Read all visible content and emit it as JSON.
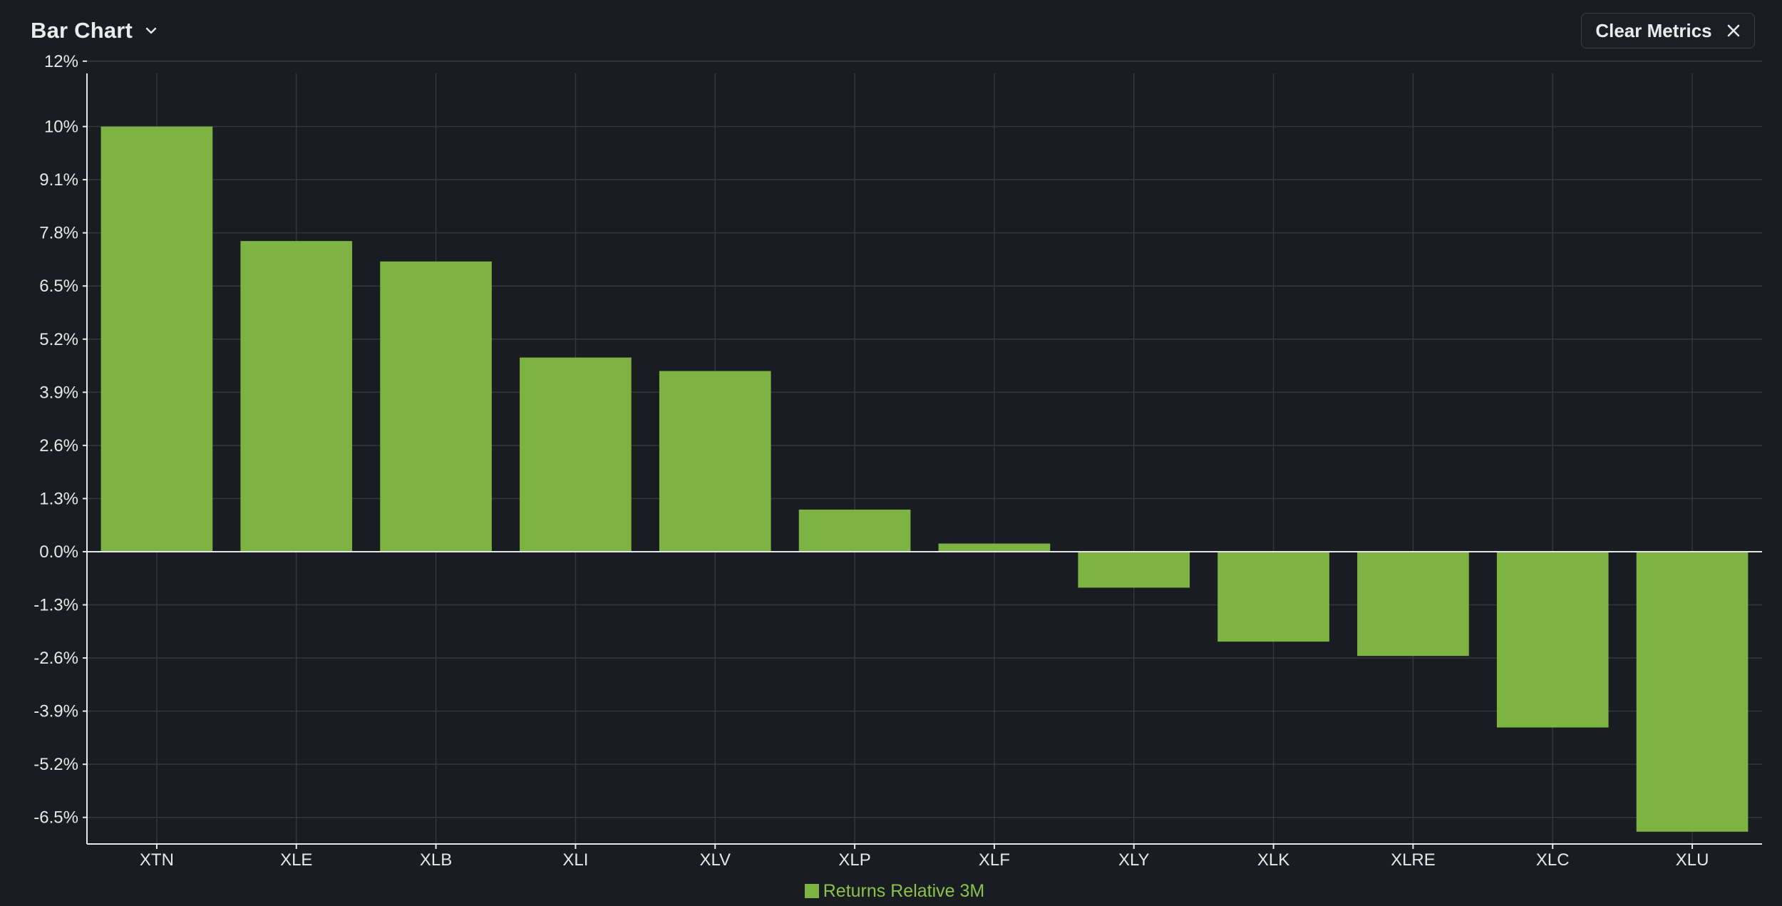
{
  "header": {
    "title": "Bar Chart",
    "clear_label": "Clear Metrics"
  },
  "colors": {
    "background": "#191c20",
    "bar": "#7db343",
    "grid": "#33383e",
    "zero_line": "#e6e8ea",
    "legend_text": "#8bc34a"
  },
  "icons": {
    "title_dropdown": "chevron-down-icon",
    "clear": "close-icon"
  },
  "chart_data": {
    "type": "bar",
    "categories": [
      "XTN",
      "XLE",
      "XLB",
      "XLI",
      "XLV",
      "XLP",
      "XLF",
      "XLY",
      "XLK",
      "XLRE",
      "XLC",
      "XLU"
    ],
    "series": [
      {
        "name": "Returns Relative 3M",
        "values": [
          10.4,
          7.6,
          7.1,
          4.75,
          4.42,
          1.03,
          0.2,
          -0.88,
          -2.2,
          -2.55,
          -4.3,
          -6.85
        ]
      }
    ],
    "yticks": [
      12,
      10.4,
      9.1,
      7.8,
      6.5,
      5.2,
      3.9,
      2.6,
      1.3,
      0.0,
      -1.3,
      -2.6,
      -3.9,
      -5.2,
      -6.5
    ],
    "ytick_labels": [
      "12%",
      "10%",
      "9.1%",
      "7.8%",
      "6.5%",
      "5.2%",
      "3.9%",
      "2.6%",
      "1.3%",
      "0.0%",
      "-1.3%",
      "-2.6%",
      "-3.9%",
      "-5.2%",
      "-6.5%"
    ],
    "ylim": [
      -7.15,
      11.7
    ],
    "legend_position": "bottom-center",
    "grid": true
  }
}
